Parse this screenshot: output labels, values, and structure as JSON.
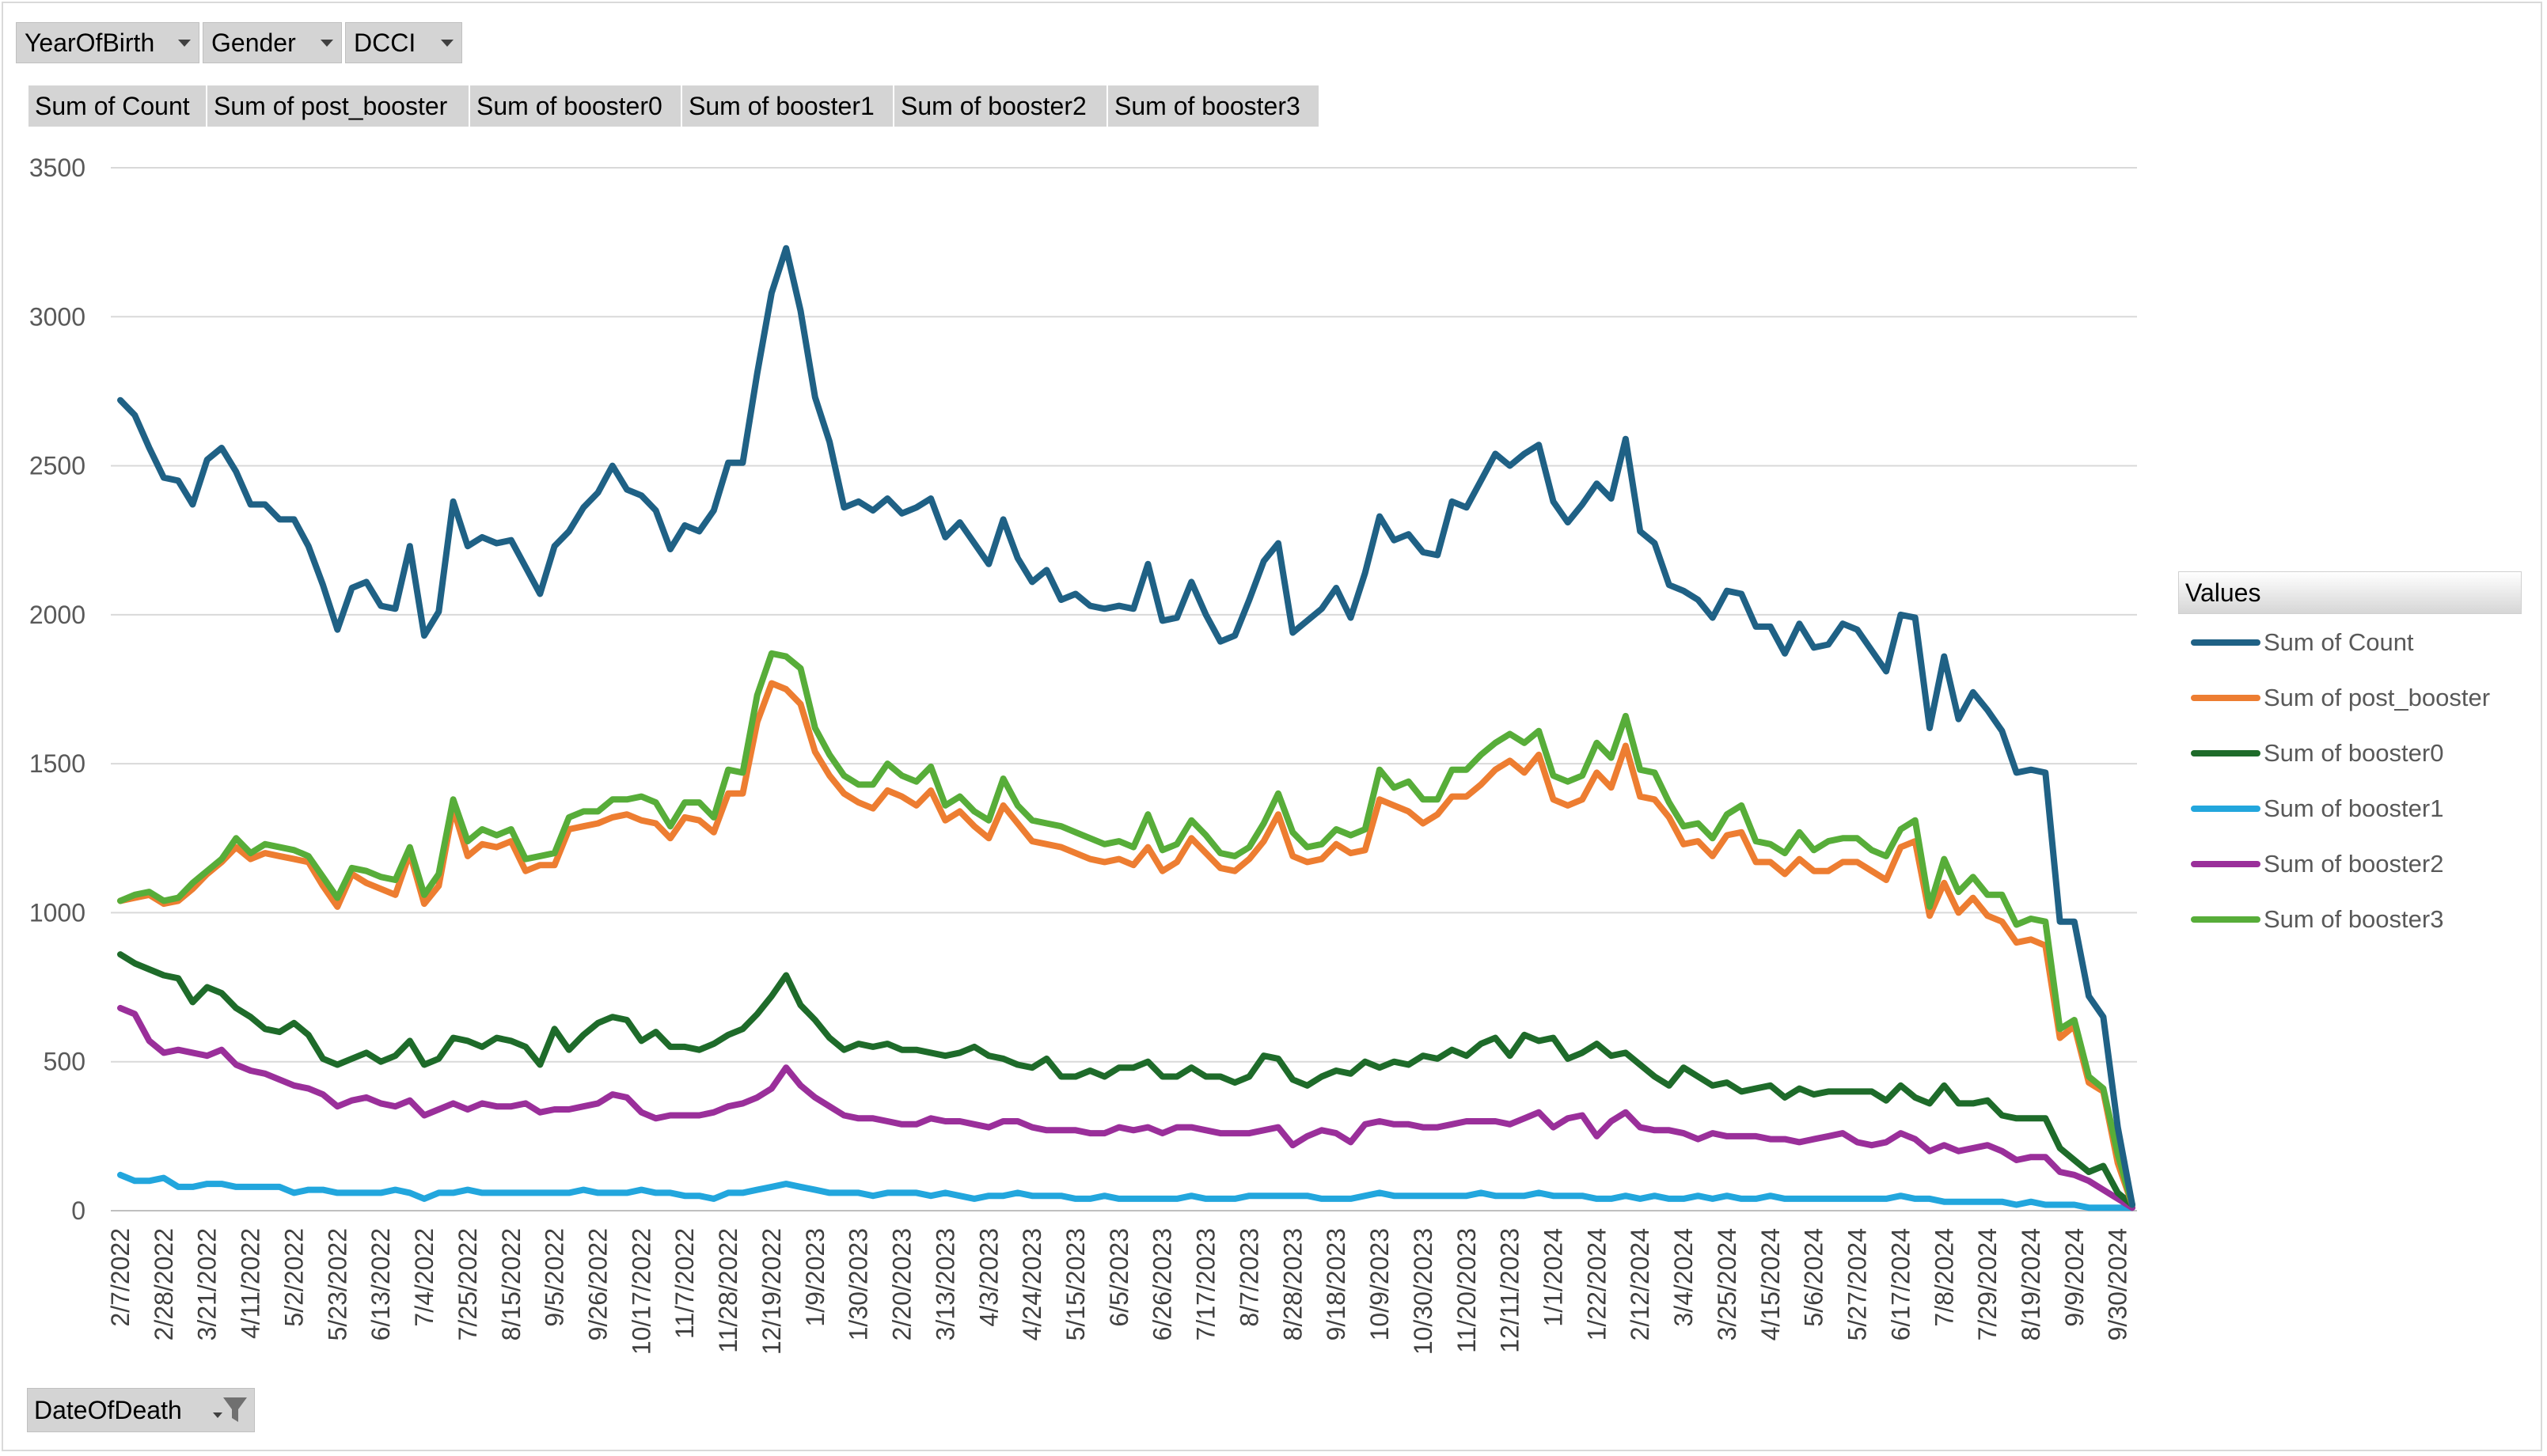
{
  "filters": [
    {
      "label": "YearOfBirth"
    },
    {
      "label": "Gender"
    },
    {
      "label": "DCCI"
    }
  ],
  "value_buttons": [
    "Sum of Count",
    "Sum of post_booster",
    "Sum of booster0",
    "Sum of booster1",
    "Sum of booster2",
    "Sum of booster3"
  ],
  "legend": {
    "title": "Values",
    "items": [
      {
        "name": "Sum of Count",
        "color": "#1f6185"
      },
      {
        "name": "Sum of post_booster",
        "color": "#ed7d31"
      },
      {
        "name": "Sum of booster0",
        "color": "#1e6b2a"
      },
      {
        "name": "Sum of booster1",
        "color": "#22a6dd"
      },
      {
        "name": "Sum of booster2",
        "color": "#9a2f9a"
      },
      {
        "name": "Sum of booster3",
        "color": "#57ad39"
      }
    ]
  },
  "row_field": {
    "label": "DateOfDeath",
    "icon": "filter-icon"
  },
  "chart_data": {
    "type": "line",
    "title": "",
    "xlabel": "DateOfDeath",
    "ylabel": "",
    "ylim": [
      0,
      3500
    ],
    "yticks": [
      0,
      500,
      1000,
      1500,
      2000,
      2500,
      3000,
      3500
    ],
    "grid": true,
    "legend_position": "right",
    "x_tick_labels": [
      "2/7/2022",
      "2/28/2022",
      "3/21/2022",
      "4/11/2022",
      "5/2/2022",
      "5/23/2022",
      "6/13/2022",
      "7/4/2022",
      "7/25/2022",
      "8/15/2022",
      "9/5/2022",
      "9/26/2022",
      "10/17/2022",
      "11/7/2022",
      "11/28/2022",
      "12/19/2022",
      "1/9/2023",
      "1/30/2023",
      "2/20/2023",
      "3/13/2023",
      "4/3/2023",
      "4/24/2023",
      "5/15/2023",
      "6/5/2023",
      "6/26/2023",
      "7/17/2023",
      "8/7/2023",
      "8/28/2023",
      "9/18/2023",
      "10/9/2023",
      "10/30/2023",
      "11/20/2023",
      "12/11/2023",
      "1/1/2024",
      "1/22/2024",
      "2/12/2024",
      "3/4/2024",
      "3/25/2024",
      "4/15/2024",
      "5/6/2024",
      "5/27/2024",
      "6/17/2024",
      "7/8/2024",
      "7/29/2024",
      "8/19/2024",
      "9/9/2024",
      "9/30/2024"
    ],
    "series": [
      {
        "name": "Sum of Count",
        "values": [
          2720,
          2670,
          2560,
          2460,
          2450,
          2370,
          2520,
          2560,
          2480,
          2370,
          2370,
          2320,
          2320,
          2230,
          2100,
          1950,
          2090,
          2110,
          2030,
          2020,
          2230,
          1930,
          2010,
          2380,
          2230,
          2260,
          2240,
          2250,
          2160,
          2070,
          2230,
          2280,
          2360,
          2410,
          2500,
          2420,
          2400,
          2350,
          2220,
          2300,
          2280,
          2350,
          2510,
          2510,
          2810,
          3080,
          3230,
          3020,
          2730,
          2580,
          2360,
          2380,
          2350,
          2390,
          2340,
          2360,
          2390,
          2260,
          2310,
          2240,
          2170,
          2320,
          2190,
          2110,
          2150,
          2050,
          2070,
          2030,
          2020,
          2030,
          2020,
          2170,
          1980,
          1990,
          2110,
          2000,
          1910,
          1930,
          2050,
          2180,
          2240,
          1940,
          1980,
          2020,
          2090,
          1990,
          2140,
          2330,
          2250,
          2270,
          2210,
          2200,
          2380,
          2360,
          2450,
          2540,
          2500,
          2540,
          2570,
          2380,
          2310,
          2370,
          2440,
          2390,
          2590,
          2280,
          2240,
          2100,
          2080,
          2050,
          1990,
          2080,
          2070,
          1960,
          1960,
          1870,
          1970,
          1890,
          1900,
          1970,
          1950,
          1880,
          1810,
          2000,
          1990,
          1620,
          1860,
          1650,
          1740,
          1680,
          1610,
          1470,
          1480,
          1470,
          970,
          970,
          720,
          650,
          280,
          20
        ]
      },
      {
        "name": "Sum of post_booster",
        "values": [
          1040,
          1050,
          1060,
          1030,
          1040,
          1080,
          1130,
          1170,
          1220,
          1180,
          1200,
          1190,
          1180,
          1170,
          1090,
          1020,
          1130,
          1100,
          1080,
          1060,
          1200,
          1030,
          1090,
          1350,
          1190,
          1230,
          1220,
          1240,
          1140,
          1160,
          1160,
          1280,
          1290,
          1300,
          1320,
          1330,
          1310,
          1300,
          1250,
          1320,
          1310,
          1270,
          1400,
          1400,
          1640,
          1770,
          1750,
          1700,
          1540,
          1460,
          1400,
          1370,
          1350,
          1410,
          1390,
          1360,
          1410,
          1310,
          1340,
          1290,
          1250,
          1360,
          1300,
          1240,
          1230,
          1220,
          1200,
          1180,
          1170,
          1180,
          1160,
          1220,
          1140,
          1170,
          1250,
          1200,
          1150,
          1140,
          1180,
          1240,
          1330,
          1190,
          1170,
          1180,
          1230,
          1200,
          1210,
          1380,
          1360,
          1340,
          1300,
          1330,
          1390,
          1390,
          1430,
          1480,
          1510,
          1470,
          1530,
          1380,
          1360,
          1380,
          1470,
          1420,
          1560,
          1390,
          1380,
          1320,
          1230,
          1240,
          1190,
          1260,
          1270,
          1170,
          1170,
          1130,
          1180,
          1140,
          1140,
          1170,
          1170,
          1140,
          1110,
          1220,
          1240,
          990,
          1100,
          1000,
          1050,
          990,
          970,
          900,
          910,
          890,
          580,
          620,
          430,
          400,
          160,
          20
        ]
      },
      {
        "name": "Sum of booster0",
        "values": [
          860,
          830,
          810,
          790,
          780,
          700,
          750,
          730,
          680,
          650,
          610,
          600,
          630,
          590,
          510,
          490,
          510,
          530,
          500,
          520,
          570,
          490,
          510,
          580,
          570,
          550,
          580,
          570,
          550,
          490,
          610,
          540,
          590,
          630,
          650,
          640,
          570,
          600,
          550,
          550,
          540,
          560,
          590,
          610,
          660,
          720,
          790,
          690,
          640,
          580,
          540,
          560,
          550,
          560,
          540,
          540,
          530,
          520,
          530,
          550,
          520,
          510,
          490,
          480,
          510,
          450,
          450,
          470,
          450,
          480,
          480,
          500,
          450,
          450,
          480,
          450,
          450,
          430,
          450,
          520,
          510,
          440,
          420,
          450,
          470,
          460,
          500,
          480,
          500,
          490,
          520,
          510,
          540,
          520,
          560,
          580,
          520,
          590,
          570,
          580,
          510,
          530,
          560,
          520,
          530,
          490,
          450,
          420,
          480,
          450,
          420,
          430,
          400,
          410,
          420,
          380,
          410,
          390,
          400,
          400,
          400,
          400,
          370,
          420,
          380,
          360,
          420,
          360,
          360,
          370,
          320,
          310,
          310,
          310,
          210,
          170,
          130,
          150,
          60,
          20
        ]
      },
      {
        "name": "Sum of booster1",
        "values": [
          120,
          100,
          100,
          110,
          80,
          80,
          90,
          90,
          80,
          80,
          80,
          80,
          60,
          70,
          70,
          60,
          60,
          60,
          60,
          70,
          60,
          40,
          60,
          60,
          70,
          60,
          60,
          60,
          60,
          60,
          60,
          60,
          70,
          60,
          60,
          60,
          70,
          60,
          60,
          50,
          50,
          40,
          60,
          60,
          70,
          80,
          90,
          80,
          70,
          60,
          60,
          60,
          50,
          60,
          60,
          60,
          50,
          60,
          50,
          40,
          50,
          50,
          60,
          50,
          50,
          50,
          40,
          40,
          50,
          40,
          40,
          40,
          40,
          40,
          50,
          40,
          40,
          40,
          50,
          50,
          50,
          50,
          50,
          40,
          40,
          40,
          50,
          60,
          50,
          50,
          50,
          50,
          50,
          50,
          60,
          50,
          50,
          50,
          60,
          50,
          50,
          50,
          40,
          40,
          50,
          40,
          50,
          40,
          40,
          50,
          40,
          50,
          40,
          40,
          50,
          40,
          40,
          40,
          40,
          40,
          40,
          40,
          40,
          50,
          40,
          40,
          30,
          30,
          30,
          30,
          30,
          20,
          30,
          20,
          20,
          20,
          10,
          10,
          10,
          10
        ]
      },
      {
        "name": "Sum of booster2",
        "values": [
          680,
          660,
          570,
          530,
          540,
          530,
          520,
          540,
          490,
          470,
          460,
          440,
          420,
          410,
          390,
          350,
          370,
          380,
          360,
          350,
          370,
          320,
          340,
          360,
          340,
          360,
          350,
          350,
          360,
          330,
          340,
          340,
          350,
          360,
          390,
          380,
          330,
          310,
          320,
          320,
          320,
          330,
          350,
          360,
          380,
          410,
          480,
          420,
          380,
          350,
          320,
          310,
          310,
          300,
          290,
          290,
          310,
          300,
          300,
          290,
          280,
          300,
          300,
          280,
          270,
          270,
          270,
          260,
          260,
          280,
          270,
          280,
          260,
          280,
          280,
          270,
          260,
          260,
          260,
          270,
          280,
          220,
          250,
          270,
          260,
          230,
          290,
          300,
          290,
          290,
          280,
          280,
          290,
          300,
          300,
          300,
          290,
          310,
          330,
          280,
          310,
          320,
          250,
          300,
          330,
          280,
          270,
          270,
          260,
          240,
          260,
          250,
          250,
          250,
          240,
          240,
          230,
          240,
          250,
          260,
          230,
          220,
          230,
          260,
          240,
          200,
          220,
          200,
          210,
          220,
          200,
          170,
          180,
          180,
          130,
          120,
          100,
          70,
          40,
          10
        ]
      },
      {
        "name": "Sum of booster3",
        "values": [
          1040,
          1060,
          1070,
          1040,
          1050,
          1100,
          1140,
          1180,
          1250,
          1200,
          1230,
          1220,
          1210,
          1190,
          1120,
          1050,
          1150,
          1140,
          1120,
          1110,
          1220,
          1060,
          1130,
          1380,
          1240,
          1280,
          1260,
          1280,
          1180,
          1190,
          1200,
          1320,
          1340,
          1340,
          1380,
          1380,
          1390,
          1370,
          1290,
          1370,
          1370,
          1320,
          1480,
          1470,
          1730,
          1870,
          1860,
          1820,
          1620,
          1530,
          1460,
          1430,
          1430,
          1500,
          1460,
          1440,
          1490,
          1360,
          1390,
          1340,
          1310,
          1450,
          1360,
          1310,
          1300,
          1290,
          1270,
          1250,
          1230,
          1240,
          1220,
          1330,
          1210,
          1230,
          1310,
          1260,
          1200,
          1190,
          1220,
          1300,
          1400,
          1270,
          1220,
          1230,
          1280,
          1260,
          1280,
          1480,
          1420,
          1440,
          1380,
          1380,
          1480,
          1480,
          1530,
          1570,
          1600,
          1570,
          1610,
          1460,
          1440,
          1460,
          1570,
          1520,
          1660,
          1480,
          1470,
          1370,
          1290,
          1300,
          1250,
          1330,
          1360,
          1240,
          1230,
          1200,
          1270,
          1210,
          1240,
          1250,
          1250,
          1210,
          1190,
          1280,
          1310,
          1020,
          1180,
          1070,
          1120,
          1060,
          1060,
          960,
          980,
          970,
          610,
          640,
          450,
          410,
          190,
          20
        ]
      }
    ]
  }
}
